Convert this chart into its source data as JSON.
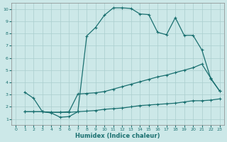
{
  "xlabel": "Humidex (Indice chaleur)",
  "xlim": [
    -0.5,
    23.5
  ],
  "ylim": [
    0.5,
    10.5
  ],
  "xticks": [
    0,
    1,
    2,
    3,
    4,
    5,
    6,
    7,
    8,
    9,
    10,
    11,
    12,
    13,
    14,
    15,
    16,
    17,
    18,
    19,
    20,
    21,
    22,
    23
  ],
  "yticks": [
    1,
    2,
    3,
    4,
    5,
    6,
    7,
    8,
    9,
    10
  ],
  "bg_color": "#cce8e8",
  "grid_color": "#aacece",
  "line_color": "#1a7070",
  "line1_x": [
    1,
    2,
    3,
    4,
    5,
    6,
    7,
    8,
    9,
    10,
    11,
    12,
    13,
    14,
    15,
    16,
    17,
    18,
    19,
    20,
    21,
    22,
    23
  ],
  "line1_y": [
    3.2,
    2.7,
    1.6,
    1.5,
    1.15,
    1.2,
    1.6,
    7.8,
    8.5,
    9.5,
    10.1,
    10.1,
    10.05,
    9.6,
    9.55,
    8.1,
    7.9,
    9.3,
    7.85,
    7.85,
    6.65,
    4.3,
    3.3
  ],
  "line2_x": [
    1,
    2,
    3,
    4,
    5,
    6,
    7,
    8,
    9,
    10,
    11,
    12,
    13,
    14,
    15,
    16,
    17,
    18,
    19,
    20,
    21,
    22,
    23
  ],
  "line2_y": [
    1.6,
    1.6,
    1.6,
    1.55,
    1.55,
    1.55,
    1.6,
    1.65,
    1.7,
    1.8,
    1.85,
    1.9,
    2.0,
    2.1,
    2.15,
    2.2,
    2.25,
    2.3,
    2.4,
    2.5,
    2.5,
    2.55,
    2.65
  ],
  "line3_x": [
    1,
    2,
    3,
    4,
    5,
    6,
    7,
    8,
    9,
    10,
    11,
    12,
    13,
    14,
    15,
    16,
    17,
    18,
    19,
    20,
    21,
    22,
    23
  ],
  "line3_y": [
    1.6,
    1.6,
    1.6,
    1.55,
    1.55,
    1.6,
    3.05,
    3.1,
    3.15,
    3.25,
    3.45,
    3.65,
    3.85,
    4.05,
    4.25,
    4.45,
    4.6,
    4.8,
    5.0,
    5.2,
    5.5,
    4.35,
    3.3
  ]
}
